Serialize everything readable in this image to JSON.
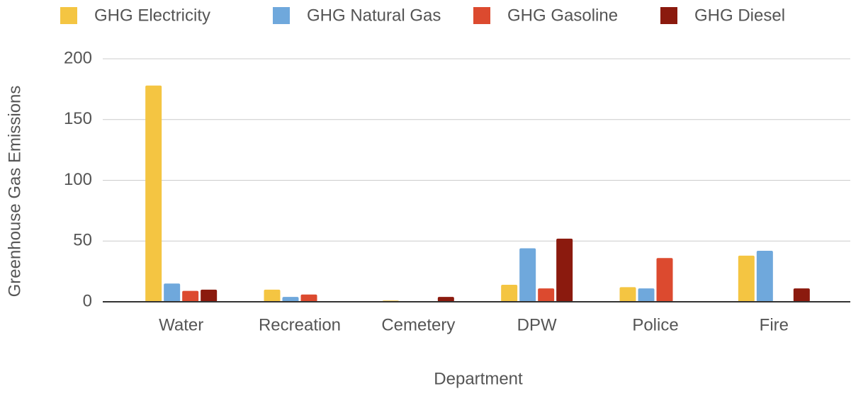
{
  "chart_data": {
    "type": "bar",
    "categories": [
      "Water",
      "Recreation",
      "Cemetery",
      "DPW",
      "Police",
      "Fire"
    ],
    "series": [
      {
        "name": "GHG Electricity",
        "color": "#f4c542",
        "values": [
          178,
          10,
          1,
          14,
          12,
          38
        ]
      },
      {
        "name": "GHG Natural Gas",
        "color": "#6fa8dc",
        "values": [
          15,
          4,
          0,
          44,
          11,
          42
        ]
      },
      {
        "name": "GHG Gasoline",
        "color": "#dc4a2f",
        "values": [
          9,
          6,
          0,
          11,
          36,
          0
        ]
      },
      {
        "name": "GHG Diesel",
        "color": "#8b1a0e",
        "values": [
          10,
          0,
          4,
          52,
          0,
          11
        ]
      }
    ],
    "xlabel": "Department",
    "ylabel": "Greenhouse Gas Emissions",
    "ylim": [
      0,
      200
    ],
    "yticks": [
      0,
      50,
      100,
      150,
      200
    ],
    "grid": true,
    "legend": "top"
  }
}
